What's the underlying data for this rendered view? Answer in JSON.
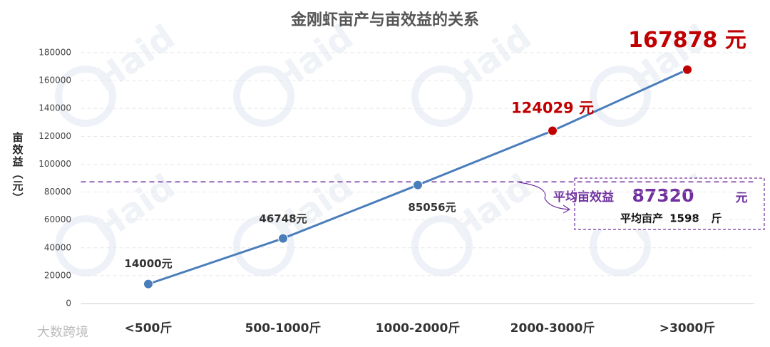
{
  "chart_data": {
    "type": "line",
    "title": "金刚虾亩产与亩效益的关系",
    "y_label": "亩效益（元）",
    "categories": [
      "<500斤",
      "500-1000斤",
      "1000-2000斤",
      "2000-3000斤",
      ">3000斤"
    ],
    "values": [
      14000,
      46748,
      85056,
      124029,
      167878
    ],
    "value_labels": [
      "14000元",
      "46748元",
      "85056元",
      "124029 元",
      "167878 元"
    ],
    "color": "#4a7ebb",
    "marker_colors": [
      "#4a7ebb",
      "#4a7ebb",
      "#4a7ebb",
      "#c00000",
      "#c00000"
    ],
    "label_colors": [
      "#333333",
      "#333333",
      "#333333",
      "#c00000",
      "#c00000"
    ],
    "ylim": [
      0,
      180000
    ],
    "yticks": [
      0,
      20000,
      40000,
      60000,
      80000,
      100000,
      120000,
      140000,
      160000,
      180000
    ],
    "grid": true,
    "average": {
      "label": "平均亩效益",
      "value": 87320,
      "unit": "元",
      "color": "#7030a0"
    },
    "average_yield": {
      "label": "平均亩产",
      "value": 1598,
      "unit": "斤"
    },
    "watermark": "Haid",
    "source": "大数跨境"
  }
}
